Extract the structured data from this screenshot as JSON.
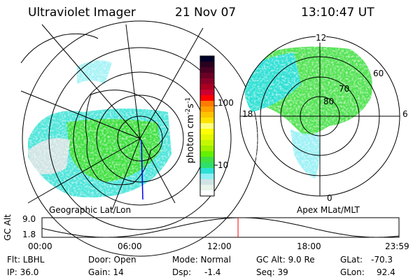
{
  "header": {
    "instrument": "Ultraviolet Imager",
    "date": "21 Nov 07",
    "time": "13:10:47 UT"
  },
  "left_panel": {
    "label": "Geographic Lat/Lon"
  },
  "right_panel": {
    "label": "Apex MLat/MLT",
    "mlt_labels": [
      "12",
      "18",
      "6",
      "0"
    ],
    "mlat_labels": [
      "60",
      "70",
      "80"
    ]
  },
  "colorbar": {
    "unit_label": "photon cm",
    "unit_sup1": "-2",
    "unit_mid": "s",
    "unit_sup2": "-1",
    "ticks": [
      "100",
      "10"
    ],
    "scale": "log",
    "colors": [
      "#00002a",
      "#2a0020",
      "#4a0022",
      "#6a0025",
      "#8a0028",
      "#aa0020",
      "#cc0030",
      "#ff0000",
      "#ff7a00",
      "#ffa000",
      "#ffc400",
      "#ffe400",
      "#ffff80",
      "#ffff00",
      "#e4f800",
      "#c4f800",
      "#a0f000",
      "#64f000",
      "#40e040",
      "#2ee068",
      "#2ee0d4",
      "#90f0f4",
      "#d0e4e4",
      "#e8f4ec",
      "#ffffff"
    ]
  },
  "altitude_plot": {
    "ylabel": "GC Alt",
    "yticks": [
      "9.0",
      "1.8"
    ],
    "xticks": [
      "00:00",
      "06:00",
      "12:00",
      "18:00",
      "23:59"
    ],
    "current_time_hours": 13.18,
    "marker_color": "#ff0000"
  },
  "info": {
    "filter": "Flt: LBHL",
    "ip": "IP: 36.0",
    "door": "Door: Open",
    "gain": "Gain: 14",
    "mode": "Mode: Normal",
    "dsp_label": "Dsp:",
    "dsp_value": "-1.4",
    "gc_alt": "GC Alt: 9.0 Re",
    "seq": "Seq: 39",
    "glat_label": "GLat:",
    "glat_value": "-70.3",
    "glon_label": "GLon:",
    "glon_value": "92.4"
  }
}
